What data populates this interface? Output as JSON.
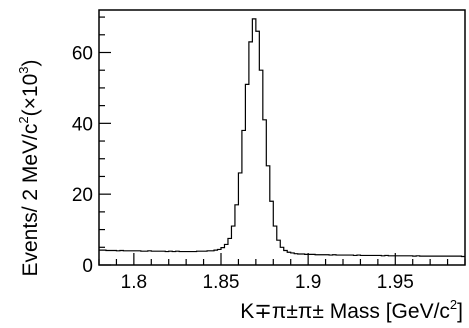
{
  "chart_data": {
    "type": "histogram",
    "title": "",
    "bin_width": 0.002,
    "x_range": [
      1.78,
      1.99
    ],
    "y_range": [
      0,
      72
    ],
    "grid": false,
    "x_ticks": [
      {
        "value": 1.8,
        "label": "1.8"
      },
      {
        "value": 1.85,
        "label": "1.85"
      },
      {
        "value": 1.9,
        "label": "1.9"
      },
      {
        "value": 1.95,
        "label": "1.95"
      }
    ],
    "y_ticks": [
      {
        "value": 0,
        "label": "0"
      },
      {
        "value": 20,
        "label": "20"
      },
      {
        "value": 40,
        "label": "40"
      },
      {
        "value": 60,
        "label": "60"
      }
    ],
    "xlabel": {
      "main": "K∓π±π± Mass [GeV/c",
      "sup": "2",
      "end": "]"
    },
    "ylabel": {
      "part1": "Events/ 2 MeV/c",
      "sup1": "2",
      "part2": "(×10",
      "sup2": "3",
      "part3": ")"
    },
    "bins": [
      {
        "x": 1.78,
        "y": 4.2
      },
      {
        "x": 1.782,
        "y": 4.2
      },
      {
        "x": 1.784,
        "y": 4.1
      },
      {
        "x": 1.786,
        "y": 4.1
      },
      {
        "x": 1.788,
        "y": 4.1
      },
      {
        "x": 1.79,
        "y": 4.0
      },
      {
        "x": 1.792,
        "y": 4.1
      },
      {
        "x": 1.794,
        "y": 4.0
      },
      {
        "x": 1.796,
        "y": 4.0
      },
      {
        "x": 1.798,
        "y": 4.0
      },
      {
        "x": 1.8,
        "y": 4.0
      },
      {
        "x": 1.802,
        "y": 4.0
      },
      {
        "x": 1.804,
        "y": 3.9
      },
      {
        "x": 1.806,
        "y": 3.9
      },
      {
        "x": 1.808,
        "y": 4.0
      },
      {
        "x": 1.81,
        "y": 3.9
      },
      {
        "x": 1.812,
        "y": 3.9
      },
      {
        "x": 1.814,
        "y": 3.9
      },
      {
        "x": 1.816,
        "y": 3.9
      },
      {
        "x": 1.818,
        "y": 3.8
      },
      {
        "x": 1.82,
        "y": 3.9
      },
      {
        "x": 1.822,
        "y": 3.8
      },
      {
        "x": 1.824,
        "y": 3.9
      },
      {
        "x": 1.826,
        "y": 3.8
      },
      {
        "x": 1.828,
        "y": 3.8
      },
      {
        "x": 1.83,
        "y": 3.8
      },
      {
        "x": 1.832,
        "y": 3.8
      },
      {
        "x": 1.834,
        "y": 3.8
      },
      {
        "x": 1.836,
        "y": 3.9
      },
      {
        "x": 1.838,
        "y": 3.9
      },
      {
        "x": 1.84,
        "y": 3.9
      },
      {
        "x": 1.842,
        "y": 4.0
      },
      {
        "x": 1.844,
        "y": 4.0
      },
      {
        "x": 1.846,
        "y": 4.2
      },
      {
        "x": 1.848,
        "y": 4.4
      },
      {
        "x": 1.85,
        "y": 4.9
      },
      {
        "x": 1.852,
        "y": 5.8
      },
      {
        "x": 1.854,
        "y": 7.5
      },
      {
        "x": 1.856,
        "y": 11.0
      },
      {
        "x": 1.858,
        "y": 17.0
      },
      {
        "x": 1.86,
        "y": 26.0
      },
      {
        "x": 1.862,
        "y": 38.0
      },
      {
        "x": 1.864,
        "y": 51.0
      },
      {
        "x": 1.866,
        "y": 63.0
      },
      {
        "x": 1.868,
        "y": 69.5
      },
      {
        "x": 1.87,
        "y": 66.0
      },
      {
        "x": 1.872,
        "y": 55.0
      },
      {
        "x": 1.874,
        "y": 41.0
      },
      {
        "x": 1.876,
        "y": 28.0
      },
      {
        "x": 1.878,
        "y": 18.0
      },
      {
        "x": 1.88,
        "y": 11.0
      },
      {
        "x": 1.882,
        "y": 7.0
      },
      {
        "x": 1.884,
        "y": 5.0
      },
      {
        "x": 1.886,
        "y": 4.1
      },
      {
        "x": 1.888,
        "y": 3.6
      },
      {
        "x": 1.89,
        "y": 3.4
      },
      {
        "x": 1.892,
        "y": 3.2
      },
      {
        "x": 1.894,
        "y": 3.1
      },
      {
        "x": 1.896,
        "y": 3.1
      },
      {
        "x": 1.898,
        "y": 3.0
      },
      {
        "x": 1.9,
        "y": 3.0
      },
      {
        "x": 1.902,
        "y": 3.0
      },
      {
        "x": 1.904,
        "y": 2.9
      },
      {
        "x": 1.906,
        "y": 2.9
      },
      {
        "x": 1.908,
        "y": 2.9
      },
      {
        "x": 1.91,
        "y": 2.9
      },
      {
        "x": 1.912,
        "y": 2.8
      },
      {
        "x": 1.914,
        "y": 2.9
      },
      {
        "x": 1.916,
        "y": 2.8
      },
      {
        "x": 1.918,
        "y": 2.8
      },
      {
        "x": 1.92,
        "y": 2.8
      },
      {
        "x": 1.922,
        "y": 2.8
      },
      {
        "x": 1.924,
        "y": 2.8
      },
      {
        "x": 1.926,
        "y": 2.7
      },
      {
        "x": 1.928,
        "y": 2.8
      },
      {
        "x": 1.93,
        "y": 2.7
      },
      {
        "x": 1.932,
        "y": 2.7
      },
      {
        "x": 1.934,
        "y": 2.7
      },
      {
        "x": 1.936,
        "y": 2.7
      },
      {
        "x": 1.938,
        "y": 2.7
      },
      {
        "x": 1.94,
        "y": 2.7
      },
      {
        "x": 1.942,
        "y": 2.6
      },
      {
        "x": 1.944,
        "y": 2.7
      },
      {
        "x": 1.946,
        "y": 2.6
      },
      {
        "x": 1.948,
        "y": 2.6
      },
      {
        "x": 1.95,
        "y": 2.6
      },
      {
        "x": 1.952,
        "y": 2.6
      },
      {
        "x": 1.954,
        "y": 2.6
      },
      {
        "x": 1.956,
        "y": 2.6
      },
      {
        "x": 1.958,
        "y": 2.6
      },
      {
        "x": 1.96,
        "y": 2.5
      },
      {
        "x": 1.962,
        "y": 2.6
      },
      {
        "x": 1.964,
        "y": 2.5
      },
      {
        "x": 1.966,
        "y": 2.5
      },
      {
        "x": 1.968,
        "y": 2.5
      },
      {
        "x": 1.97,
        "y": 2.5
      },
      {
        "x": 1.972,
        "y": 2.5
      },
      {
        "x": 1.974,
        "y": 2.5
      },
      {
        "x": 1.976,
        "y": 2.5
      },
      {
        "x": 1.978,
        "y": 2.5
      },
      {
        "x": 1.98,
        "y": 2.5
      },
      {
        "x": 1.982,
        "y": 2.5
      },
      {
        "x": 1.984,
        "y": 2.5
      },
      {
        "x": 1.986,
        "y": 2.5
      },
      {
        "x": 1.988,
        "y": 2.4
      }
    ]
  }
}
